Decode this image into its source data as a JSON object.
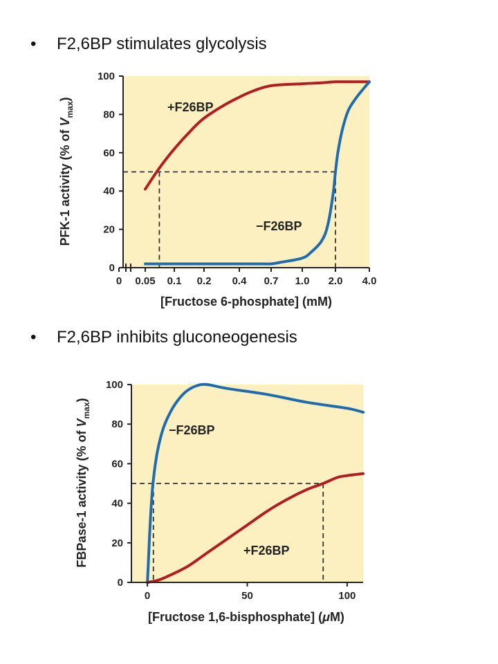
{
  "bullets": [
    {
      "symbol": "•",
      "text": "F2,6BP stimulates glycolysis"
    },
    {
      "symbol": "•",
      "text": "F2,6BP inhibits gluconeogenesis"
    }
  ],
  "colors": {
    "panel_bg": "#fdf0c0",
    "plus": "#b01e23",
    "minus": "#1f6bb0",
    "axis": "#222222"
  },
  "chart_data": [
    {
      "type": "line",
      "xlabel": "[Fructose 6-phosphate] (mM)",
      "ylabel_parts": {
        "pre": "PFK-1 activity (% of ",
        "var": "V",
        "sub": "max",
        "post": ")"
      },
      "xticks": [
        "0",
        "0.05",
        "0.1",
        "0.2",
        "0.4",
        "0.7",
        "1.0",
        "2.0",
        "4.0"
      ],
      "yticks": [
        "0",
        "20",
        "40",
        "60",
        "80",
        "100"
      ],
      "ylim": [
        0,
        100
      ],
      "x_scale": "log",
      "axis_break": "between 0 and 0.05",
      "grid": false,
      "series": [
        {
          "name": "+F26BP",
          "x": [
            0.05,
            0.07,
            0.1,
            0.15,
            0.2,
            0.3,
            0.4,
            0.5,
            0.7,
            1.0,
            1.5,
            2.0,
            3.0,
            4.0
          ],
          "y": [
            41,
            52,
            62,
            72,
            78,
            85,
            89,
            92,
            95,
            96,
            96.5,
            97,
            97,
            97
          ]
        },
        {
          "name": "−F26BP",
          "x": [
            0.05,
            0.1,
            0.2,
            0.4,
            0.6,
            0.7,
            0.8,
            1.0,
            1.2,
            1.5,
            1.7,
            1.9,
            2.0,
            2.1,
            2.3,
            2.6,
            3.0,
            3.5,
            4.0
          ],
          "y": [
            2,
            2,
            2,
            2,
            2,
            2,
            3,
            5,
            8,
            14,
            22,
            38,
            50,
            60,
            72,
            82,
            88,
            93,
            97
          ]
        }
      ],
      "reference": {
        "y": 50,
        "x_plus": 0.07,
        "x_minus": 2.0
      }
    },
    {
      "type": "line",
      "xlabel_parts": {
        "pre": "[Fructose 1,6-bisphosphate] (",
        "var": "μ",
        "post": "M)"
      },
      "ylabel_parts": {
        "pre": "FBPase-1 activity (% of ",
        "var": "V",
        "sub": "max",
        "post": ")"
      },
      "xticks": [
        "0",
        "50",
        "100"
      ],
      "yticks": [
        "0",
        "20",
        "40",
        "60",
        "80",
        "100"
      ],
      "xlim": [
        -8,
        108
      ],
      "ylim": [
        0,
        100
      ],
      "grid": false,
      "series": [
        {
          "name": "−F26BP",
          "x": [
            0,
            0.5,
            1,
            2,
            3,
            5,
            8,
            12,
            16,
            20,
            25,
            30,
            40,
            60,
            80,
            100,
            108
          ],
          "y": [
            0,
            10,
            22,
            40,
            52,
            66,
            78,
            87,
            93,
            97,
            99.5,
            100,
            98,
            95,
            91,
            88,
            86
          ]
        },
        {
          "name": "+F26BP",
          "x": [
            0,
            5,
            10,
            20,
            30,
            40,
            50,
            60,
            70,
            80,
            88,
            95,
            100,
            108
          ],
          "y": [
            0,
            1,
            3,
            8,
            15,
            22,
            29,
            36,
            42,
            47,
            50,
            53,
            54,
            55
          ]
        }
      ],
      "reference": {
        "y": 50,
        "x_minus": 3,
        "x_plus": 88
      }
    }
  ]
}
